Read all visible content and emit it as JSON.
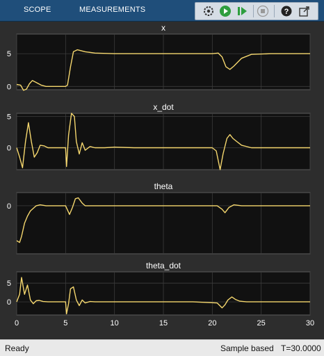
{
  "toolbar": {
    "tabs": [
      "SCOPE",
      "MEASUREMENTS"
    ],
    "buttons": [
      "settings-icon",
      "run-icon",
      "step-forward-icon",
      "stop-icon",
      "help-icon",
      "undock-icon"
    ]
  },
  "colors": {
    "signal": "#f5d76e",
    "axes_bg": "#111111",
    "figure_bg": "#2d2d2d",
    "text": "#ffffff",
    "toolbar": "#1f4e7a"
  },
  "chart_data": [
    {
      "type": "line",
      "title": "x",
      "xlim": [
        0,
        30
      ],
      "ylim": [
        -0.5,
        8
      ],
      "yticks": [
        0,
        5
      ],
      "xticks": [
        0,
        5,
        10,
        15,
        20,
        25,
        30
      ],
      "grid": true,
      "x": [
        0,
        0.4,
        0.7,
        1.0,
        1.3,
        1.6,
        2.0,
        2.5,
        3.0,
        4.0,
        5.0,
        5.2,
        5.5,
        5.8,
        6.2,
        7.0,
        8.0,
        10.0,
        12.0,
        15.0,
        18.0,
        20.0,
        20.6,
        21.0,
        21.4,
        21.8,
        22.2,
        23.0,
        24.0,
        26.0,
        28.0,
        30.0
      ],
      "y": [
        0.3,
        0.2,
        -0.6,
        -0.4,
        0.4,
        0.9,
        0.6,
        0.2,
        0.0,
        0.0,
        0.0,
        0.2,
        3.0,
        5.3,
        5.6,
        5.3,
        5.1,
        5.0,
        5.0,
        5.0,
        5.0,
        5.0,
        5.1,
        4.5,
        3.0,
        2.6,
        3.1,
        4.3,
        4.9,
        5.0,
        5.0,
        5.0
      ]
    },
    {
      "type": "line",
      "title": "x_dot",
      "xlim": [
        0,
        30
      ],
      "ylim": [
        -3.5,
        5.5
      ],
      "yticks": [
        0,
        5
      ],
      "xticks": [
        0,
        5,
        10,
        15,
        20,
        25,
        30
      ],
      "grid": true,
      "x": [
        0,
        0.3,
        0.6,
        0.9,
        1.2,
        1.5,
        1.8,
        2.1,
        2.4,
        2.8,
        3.2,
        4.0,
        5.0,
        5.1,
        5.3,
        5.6,
        5.9,
        6.1,
        6.4,
        6.7,
        7.0,
        7.5,
        8.0,
        9.0,
        10.0,
        12.0,
        14.0,
        16.0,
        18.0,
        20.0,
        20.4,
        20.8,
        21.1,
        21.5,
        21.8,
        22.1,
        22.5,
        23.0,
        24.0,
        26.0,
        28.0,
        30.0
      ],
      "y": [
        0.0,
        -1.5,
        -3.2,
        1.0,
        4.0,
        1.0,
        -1.5,
        -0.8,
        0.4,
        0.3,
        0.0,
        0.0,
        0.0,
        -3.0,
        2.0,
        5.5,
        5.0,
        1.0,
        -1.0,
        0.8,
        -0.4,
        0.2,
        0.0,
        0.0,
        0.1,
        0.0,
        0.0,
        0.0,
        0.0,
        0.0,
        -0.5,
        -3.5,
        -1.0,
        1.5,
        2.1,
        1.5,
        1.0,
        0.4,
        0.0,
        0.0,
        0.0,
        0.0
      ]
    },
    {
      "type": "line",
      "title": "theta",
      "xlim": [
        0,
        30
      ],
      "ylim": [
        -5.5,
        1.5
      ],
      "yticks": [
        0
      ],
      "xticks": [
        0,
        5,
        10,
        15,
        20,
        25,
        30
      ],
      "grid": true,
      "x": [
        0,
        0.3,
        0.5,
        0.8,
        1.1,
        1.4,
        1.7,
        2.0,
        2.4,
        3.0,
        4.0,
        5.0,
        5.2,
        5.4,
        5.7,
        6.0,
        6.3,
        6.7,
        7.0,
        8.0,
        10.0,
        14.0,
        18.0,
        20.5,
        21.0,
        21.3,
        21.7,
        22.2,
        23.0,
        26.0,
        30.0
      ],
      "y": [
        -4.0,
        -4.2,
        -3.5,
        -2.0,
        -1.2,
        -0.6,
        -0.3,
        0.0,
        0.1,
        0.0,
        0.0,
        0.0,
        -0.5,
        -1.0,
        -0.2,
        0.8,
        0.9,
        0.3,
        0.0,
        0.0,
        0.0,
        0.0,
        0.0,
        0.0,
        -0.4,
        -0.8,
        -0.2,
        0.1,
        0.0,
        0.0,
        0.0
      ]
    },
    {
      "type": "line",
      "title": "theta_dot",
      "xlim": [
        0,
        30
      ],
      "ylim": [
        -3.5,
        8
      ],
      "yticks": [
        0,
        5
      ],
      "xticks": [
        0,
        5,
        10,
        15,
        20,
        25,
        30
      ],
      "grid": true,
      "x": [
        0,
        0.3,
        0.5,
        0.8,
        1.1,
        1.4,
        1.7,
        2.0,
        2.3,
        2.7,
        3.2,
        4.0,
        5.0,
        5.1,
        5.3,
        5.5,
        5.8,
        6.1,
        6.4,
        6.7,
        7.0,
        7.5,
        8.0,
        10.0,
        14.0,
        18.0,
        20.5,
        21.0,
        21.3,
        21.6,
        22.0,
        22.4,
        22.8,
        23.5,
        26.0,
        30.0
      ],
      "y": [
        0.0,
        2.0,
        6.5,
        2.0,
        4.5,
        0.5,
        -0.5,
        0.3,
        0.4,
        0.1,
        0.0,
        0.0,
        0.0,
        -3.2,
        -0.5,
        3.5,
        4.0,
        0.5,
        -1.0,
        0.5,
        -0.3,
        0.1,
        0.0,
        0.0,
        0.0,
        0.0,
        -0.3,
        -1.6,
        -0.8,
        0.5,
        1.3,
        0.6,
        0.2,
        0.0,
        0.0,
        0.0
      ]
    }
  ],
  "status": {
    "ready": "Ready",
    "mode": "Sample based",
    "time": "T=30.0000"
  }
}
